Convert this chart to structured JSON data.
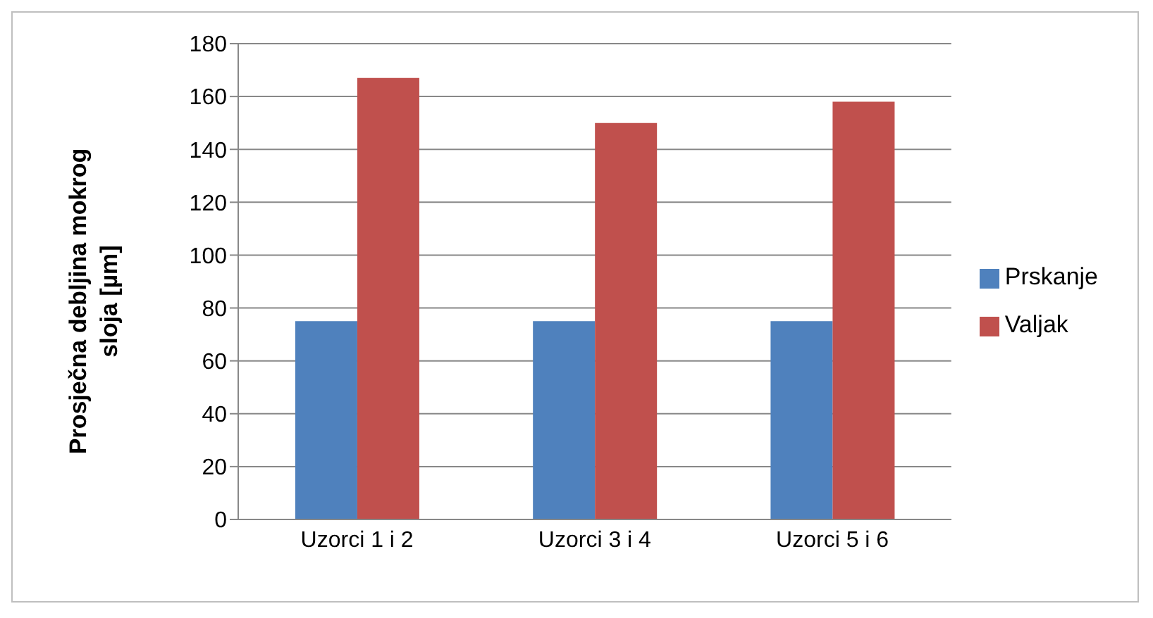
{
  "chart_data": {
    "type": "bar",
    "ylabel": "Prosječna debljina mokrog sloja [µm]",
    "categories": [
      "Uzorci 1 i 2",
      "Uzorci 3 i 4",
      "Uzorci 5 i 6"
    ],
    "series": [
      {
        "name": "Prskanje",
        "color": "#4f81bd",
        "values": [
          75,
          75,
          75
        ]
      },
      {
        "name": "Valjak",
        "color": "#c0504d",
        "values": [
          167,
          150,
          158
        ]
      }
    ],
    "ylim": [
      0,
      180
    ],
    "yticks": [
      0,
      20,
      40,
      60,
      80,
      100,
      120,
      140,
      160,
      180
    ],
    "grid": "y",
    "legend": "right"
  }
}
